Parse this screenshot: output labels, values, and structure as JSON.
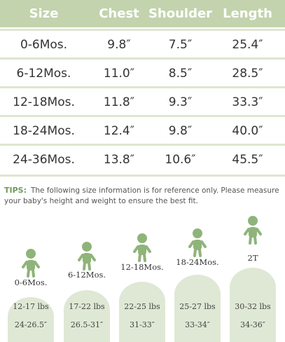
{
  "table": {
    "header": [
      "Size",
      "Chest",
      "Shoulder",
      "Length"
    ],
    "rows": [
      [
        "0-6Mos.",
        "9.8″",
        "7.5″",
        "25.4″"
      ],
      [
        "6-12Mos.",
        "11.0″",
        "8.5″",
        "28.5″"
      ],
      [
        "12-18Mos.",
        "11.8″",
        "9.3″",
        "33.3″"
      ],
      [
        "18-24Mos.",
        "12.4″",
        "9.8″",
        "40.0″"
      ],
      [
        "24-36Mos.",
        "13.8″",
        "10.6″",
        "45.5″"
      ]
    ]
  },
  "tips": {
    "label": "TIPS:",
    "text": "The following size information is for reference only. Please measure your baby's height and weight to ensure the best fit."
  },
  "stages": [
    {
      "label": "0-6Mos.",
      "weight": "12-17 lbs",
      "height": "24-26.5″"
    },
    {
      "label": "6-12Mos.",
      "weight": "17-22 lbs",
      "height": "26.5-31″"
    },
    {
      "label": "12-18Mos.",
      "weight": "22-25 lbs",
      "height": "31-33″"
    },
    {
      "label": "18-24Mos.",
      "weight": "25-27 lbs",
      "height": "33-34″"
    },
    {
      "label": "2T",
      "weight": "30-32 lbs",
      "height": "34-36″"
    }
  ]
}
